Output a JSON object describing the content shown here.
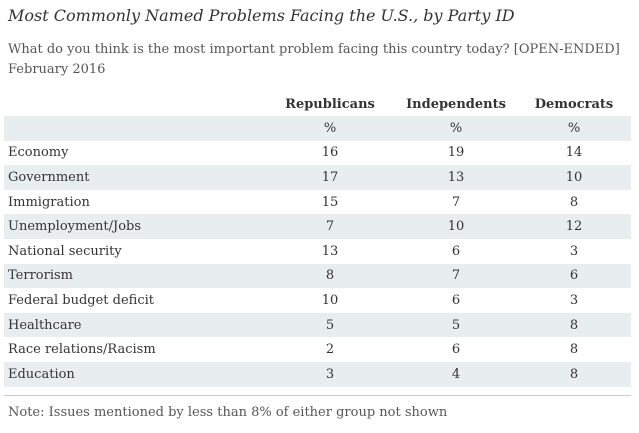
{
  "chart_data": {
    "type": "table",
    "title": "Most Commonly Named Problems Facing the U.S., by Party ID",
    "subtitle": "What do you think is the most important problem facing this country today? [OPEN-ENDED]",
    "date": "February 2016",
    "columns": [
      "Republicans",
      "Independents",
      "Democrats"
    ],
    "units": [
      "%",
      "%",
      "%"
    ],
    "rows": [
      {
        "label": "Economy",
        "values": [
          16,
          19,
          14
        ]
      },
      {
        "label": "Government",
        "values": [
          17,
          13,
          10
        ]
      },
      {
        "label": "Immigration",
        "values": [
          15,
          7,
          8
        ]
      },
      {
        "label": "Unemployment/Jobs",
        "values": [
          7,
          10,
          12
        ]
      },
      {
        "label": "National security",
        "values": [
          13,
          6,
          3
        ]
      },
      {
        "label": "Terrorism",
        "values": [
          8,
          7,
          6
        ]
      },
      {
        "label": "Federal budget deficit",
        "values": [
          10,
          6,
          3
        ]
      },
      {
        "label": "Healthcare",
        "values": [
          5,
          5,
          8
        ]
      },
      {
        "label": "Race relations/Racism",
        "values": [
          2,
          6,
          8
        ]
      },
      {
        "label": "Education",
        "values": [
          3,
          4,
          8
        ]
      }
    ],
    "note": "Note: Issues mentioned by less than 8% of either group not shown"
  },
  "colors": {
    "shaded_row": "#e8edf0",
    "text": "#333333",
    "muted_text": "#555555"
  }
}
